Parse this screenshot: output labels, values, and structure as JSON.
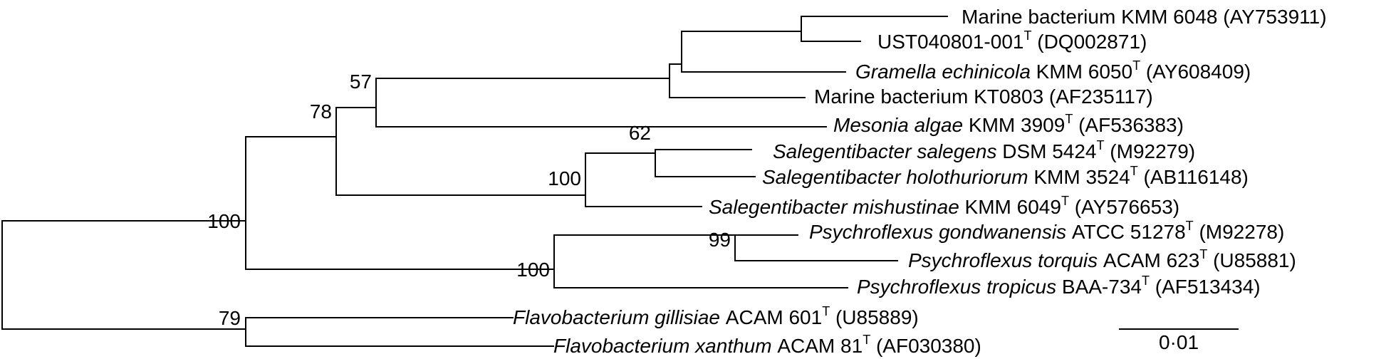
{
  "tree": {
    "leaves": [
      {
        "id": "L1",
        "name": "",
        "rest": "Marine bacterium KMM 6048",
        "type": false,
        "acc": "(AY753911)"
      },
      {
        "id": "L2",
        "name": "",
        "rest": "UST040801-001",
        "type": true,
        "acc": "(DQ002871)"
      },
      {
        "id": "L3",
        "name": "Gramella echinicola",
        "rest": "KMM 6050",
        "type": true,
        "acc": "(AY608409)"
      },
      {
        "id": "L4",
        "name": "",
        "rest": "Marine bacterium KT0803",
        "type": false,
        "acc": "(AF235117)"
      },
      {
        "id": "L5",
        "name": "Mesonia algae",
        "rest": "KMM 3909",
        "type": true,
        "acc": "(AF536383)"
      },
      {
        "id": "L6",
        "name": "Salegentibacter salegens",
        "rest": "DSM 5424",
        "type": true,
        "acc": "(M92279)"
      },
      {
        "id": "L7",
        "name": "Salegentibacter holothuriorum",
        "rest": "KMM 3524",
        "type": true,
        "acc": "(AB116148)"
      },
      {
        "id": "L8",
        "name": "Salegentibacter mishustinae",
        "rest": "KMM 6049",
        "type": true,
        "acc": "(AY576653)"
      },
      {
        "id": "L9",
        "name": "Psychroflexus gondwanensis",
        "rest": "ATCC 51278",
        "type": true,
        "acc": "(M92278)"
      },
      {
        "id": "L10",
        "name": "Psychroflexus torquis",
        "rest": "ACAM 623",
        "type": true,
        "acc": "(U85881)"
      },
      {
        "id": "L11",
        "name": "Psychroflexus tropicus",
        "rest": "BAA-734",
        "type": true,
        "acc": "(AF513434)"
      },
      {
        "id": "L12",
        "name": "Flavobacterium gillisiae",
        "rest": "ACAM 601",
        "type": true,
        "acc": "(U85889)"
      },
      {
        "id": "L13",
        "name": "Flavobacterium xanthum",
        "rest": "ACAM 81",
        "type": true,
        "acc": "(AF030380)"
      }
    ],
    "type_strain_mark": "T",
    "bootstrap_values": [
      "57",
      "78",
      "62",
      "100",
      "100",
      "99",
      "100",
      "79"
    ],
    "scale_bar_label": "0·01"
  }
}
